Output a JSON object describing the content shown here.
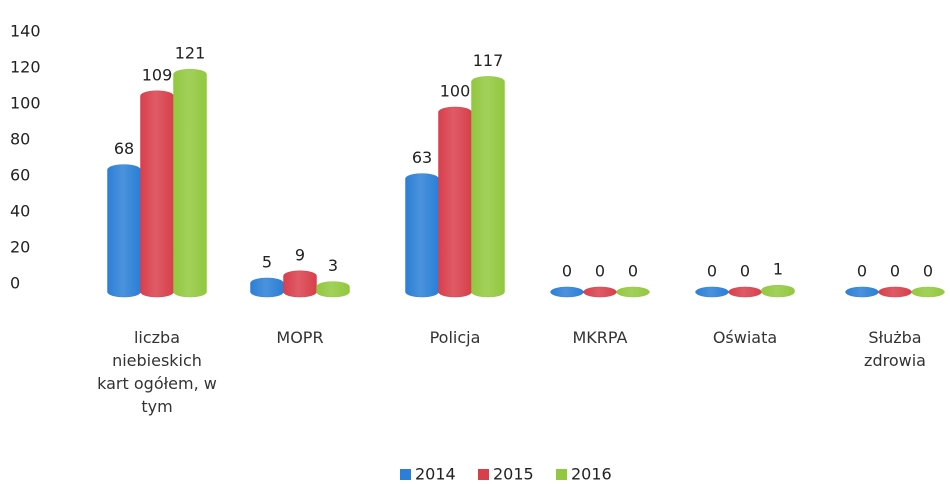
{
  "chart_data": {
    "type": "bar",
    "categories": [
      "liczba niebieskich kart ogółem, w tym",
      "MOPR",
      "Policja",
      "MKRPA",
      "Oświata",
      "Służba zdrowia"
    ],
    "series": [
      {
        "name": "2014",
        "color": "#2b7fd6",
        "values": [
          68,
          5,
          63,
          0,
          0,
          0
        ]
      },
      {
        "name": "2015",
        "color": "#d83f4b",
        "values": [
          109,
          9,
          100,
          0,
          0,
          0
        ]
      },
      {
        "name": "2016",
        "color": "#92c83e",
        "values": [
          121,
          3,
          117,
          0,
          1,
          0
        ]
      }
    ],
    "ylim": [
      0,
      140
    ],
    "yticks": [
      0,
      20,
      40,
      60,
      80,
      100,
      120,
      140
    ],
    "grid": false,
    "legend": "bottom"
  }
}
